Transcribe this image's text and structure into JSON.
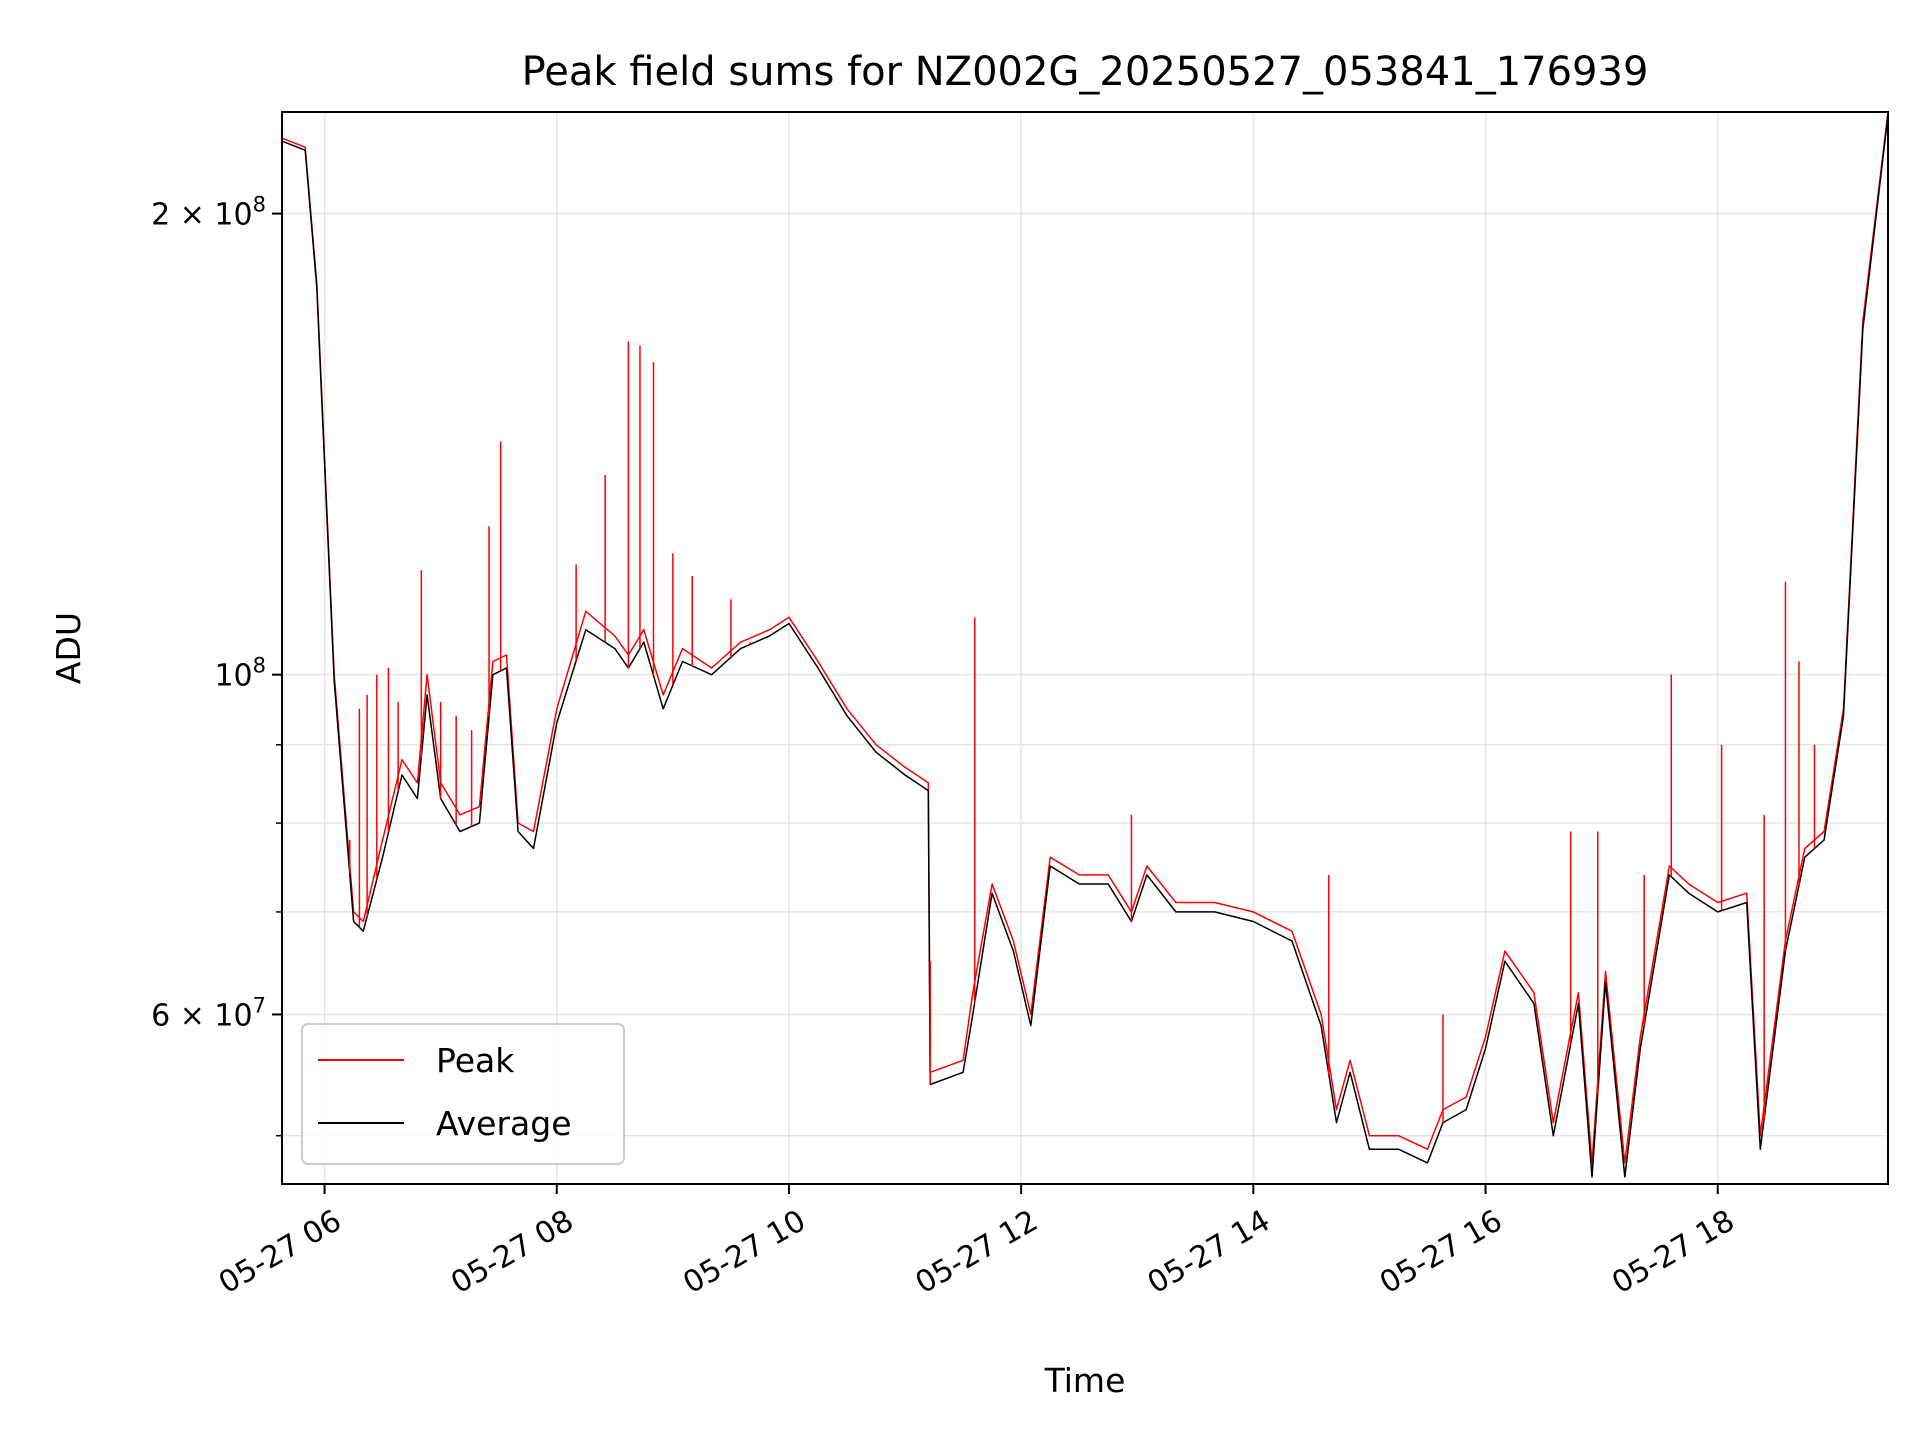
{
  "chart_data": {
    "type": "line",
    "title": "Peak field sums for NZ002G_20250527_053841_176939",
    "xlabel": "Time",
    "ylabel": "ADU",
    "y_scale": "log",
    "xlim": [
      "2025-05-27 05:38",
      "2025-05-27 19:28"
    ],
    "ylim": [
      46500000,
      233000000
    ],
    "grid": true,
    "legend_position": "lower-left",
    "x_ticks": [
      {
        "value": "2025-05-27 06:00",
        "label": "05-27 06"
      },
      {
        "value": "2025-05-27 08:00",
        "label": "05-27 08"
      },
      {
        "value": "2025-05-27 10:00",
        "label": "05-27 10"
      },
      {
        "value": "2025-05-27 12:00",
        "label": "05-27 12"
      },
      {
        "value": "2025-05-27 14:00",
        "label": "05-27 14"
      },
      {
        "value": "2025-05-27 16:00",
        "label": "05-27 16"
      },
      {
        "value": "2025-05-27 18:00",
        "label": "05-27 18"
      }
    ],
    "y_ticks": [
      {
        "value": 200000000,
        "label_base": "2 × 10",
        "label_exp": "8"
      },
      {
        "value": 100000000,
        "label_base": "10",
        "label_exp": "8"
      },
      {
        "value": 60000000,
        "label_base": "6 × 10",
        "label_exp": "7"
      }
    ],
    "y_minor_ticks": [
      50000000,
      70000000,
      80000000,
      90000000
    ],
    "series": [
      {
        "name": "Peak",
        "color": "#ff0000",
        "x": [
          "2025-05-27 05:38",
          "2025-05-27 05:50",
          "2025-05-27 05:56",
          "2025-05-27 06:05",
          "2025-05-27 06:15",
          "2025-05-27 06:20",
          "2025-05-27 06:30",
          "2025-05-27 06:40",
          "2025-05-27 06:48",
          "2025-05-27 06:53",
          "2025-05-27 07:00",
          "2025-05-27 07:10",
          "2025-05-27 07:20",
          "2025-05-27 07:27",
          "2025-05-27 07:34",
          "2025-05-27 07:40",
          "2025-05-27 07:48",
          "2025-05-27 08:00",
          "2025-05-27 08:15",
          "2025-05-27 08:30",
          "2025-05-27 08:37",
          "2025-05-27 08:45",
          "2025-05-27 08:55",
          "2025-05-27 09:05",
          "2025-05-27 09:20",
          "2025-05-27 09:35",
          "2025-05-27 09:50",
          "2025-05-27 10:00",
          "2025-05-27 10:15",
          "2025-05-27 10:30",
          "2025-05-27 10:45",
          "2025-05-27 11:00",
          "2025-05-27 11:12",
          "2025-05-27 11:13",
          "2025-05-27 11:30",
          "2025-05-27 11:35",
          "2025-05-27 11:45",
          "2025-05-27 11:56",
          "2025-05-27 12:05",
          "2025-05-27 12:15",
          "2025-05-27 12:30",
          "2025-05-27 12:45",
          "2025-05-27 12:57",
          "2025-05-27 13:05",
          "2025-05-27 13:20",
          "2025-05-27 13:40",
          "2025-05-27 14:00",
          "2025-05-27 14:20",
          "2025-05-27 14:35",
          "2025-05-27 14:43",
          "2025-05-27 14:50",
          "2025-05-27 15:00",
          "2025-05-27 15:15",
          "2025-05-27 15:30",
          "2025-05-27 15:38",
          "2025-05-27 15:50",
          "2025-05-27 16:00",
          "2025-05-27 16:10",
          "2025-05-27 16:25",
          "2025-05-27 16:35",
          "2025-05-27 16:48",
          "2025-05-27 16:55",
          "2025-05-27 17:02",
          "2025-05-27 17:12",
          "2025-05-27 17:20",
          "2025-05-27 17:35",
          "2025-05-27 17:45",
          "2025-05-27 18:00",
          "2025-05-27 18:15",
          "2025-05-27 18:22",
          "2025-05-27 18:35",
          "2025-05-27 18:45",
          "2025-05-27 18:55",
          "2025-05-27 19:05",
          "2025-05-27 19:15",
          "2025-05-27 19:28"
        ],
        "values": [
          224000000,
          221000000,
          180000000,
          100000000,
          70000000,
          69000000,
          78000000,
          88000000,
          85000000,
          100000000,
          85000000,
          81000000,
          82000000,
          102000000,
          103000000,
          80000000,
          79000000,
          95000000,
          110000000,
          106000000,
          103000000,
          107000000,
          97000000,
          104000000,
          101000000,
          105000000,
          107000000,
          109000000,
          102000000,
          95000000,
          90000000,
          87000000,
          85000000,
          55000000,
          56000000,
          62000000,
          73000000,
          67000000,
          60000000,
          76000000,
          74000000,
          74000000,
          70000000,
          75000000,
          71000000,
          71000000,
          70000000,
          68000000,
          60000000,
          52000000,
          56000000,
          50000000,
          50000000,
          49000000,
          52000000,
          53000000,
          58000000,
          66000000,
          62000000,
          51000000,
          62000000,
          48000000,
          64000000,
          48000000,
          58000000,
          75000000,
          73000000,
          71000000,
          72000000,
          50000000,
          67000000,
          77000000,
          79000000,
          95000000,
          170000000,
          233000000
        ]
      },
      {
        "name": "Average",
        "color": "#000000",
        "x": [
          "2025-05-27 05:38",
          "2025-05-27 05:50",
          "2025-05-27 05:56",
          "2025-05-27 06:05",
          "2025-05-27 06:15",
          "2025-05-27 06:20",
          "2025-05-27 06:30",
          "2025-05-27 06:40",
          "2025-05-27 06:48",
          "2025-05-27 06:53",
          "2025-05-27 07:00",
          "2025-05-27 07:10",
          "2025-05-27 07:20",
          "2025-05-27 07:27",
          "2025-05-27 07:34",
          "2025-05-27 07:40",
          "2025-05-27 07:48",
          "2025-05-27 08:00",
          "2025-05-27 08:15",
          "2025-05-27 08:30",
          "2025-05-27 08:37",
          "2025-05-27 08:45",
          "2025-05-27 08:55",
          "2025-05-27 09:05",
          "2025-05-27 09:20",
          "2025-05-27 09:35",
          "2025-05-27 09:50",
          "2025-05-27 10:00",
          "2025-05-27 10:15",
          "2025-05-27 10:30",
          "2025-05-27 10:45",
          "2025-05-27 11:00",
          "2025-05-27 11:12",
          "2025-05-27 11:13",
          "2025-05-27 11:30",
          "2025-05-27 11:35",
          "2025-05-27 11:45",
          "2025-05-27 11:56",
          "2025-05-27 12:05",
          "2025-05-27 12:15",
          "2025-05-27 12:30",
          "2025-05-27 12:45",
          "2025-05-27 12:57",
          "2025-05-27 13:05",
          "2025-05-27 13:20",
          "2025-05-27 13:40",
          "2025-05-27 14:00",
          "2025-05-27 14:20",
          "2025-05-27 14:35",
          "2025-05-27 14:43",
          "2025-05-27 14:50",
          "2025-05-27 15:00",
          "2025-05-27 15:15",
          "2025-05-27 15:30",
          "2025-05-27 15:38",
          "2025-05-27 15:50",
          "2025-05-27 16:00",
          "2025-05-27 16:10",
          "2025-05-27 16:25",
          "2025-05-27 16:35",
          "2025-05-27 16:48",
          "2025-05-27 16:55",
          "2025-05-27 17:02",
          "2025-05-27 17:12",
          "2025-05-27 17:20",
          "2025-05-27 17:35",
          "2025-05-27 17:45",
          "2025-05-27 18:00",
          "2025-05-27 18:15",
          "2025-05-27 18:22",
          "2025-05-27 18:35",
          "2025-05-27 18:45",
          "2025-05-27 18:55",
          "2025-05-27 19:05",
          "2025-05-27 19:15",
          "2025-05-27 19:28"
        ],
        "values": [
          223000000,
          220000000,
          179000000,
          99000000,
          69000000,
          68000000,
          76000000,
          86000000,
          83000000,
          97000000,
          83000000,
          79000000,
          80000000,
          100000000,
          101000000,
          79000000,
          77000000,
          93000000,
          107000000,
          104000000,
          101000000,
          105000000,
          95000000,
          102000000,
          100000000,
          104000000,
          106000000,
          108000000,
          101000000,
          94000000,
          89000000,
          86000000,
          84000000,
          54000000,
          55000000,
          60000000,
          72000000,
          66000000,
          59000000,
          75000000,
          73000000,
          73000000,
          69000000,
          74000000,
          70000000,
          70000000,
          69000000,
          67000000,
          59000000,
          51000000,
          55000000,
          49000000,
          49000000,
          48000000,
          51000000,
          52000000,
          57000000,
          65000000,
          61000000,
          50000000,
          61000000,
          47000000,
          63000000,
          47000000,
          57000000,
          74000000,
          72000000,
          70000000,
          71000000,
          49000000,
          66000000,
          76000000,
          78000000,
          94000000,
          168000000,
          232000000
        ]
      }
    ],
    "spikes": {
      "color": "#ff0000",
      "x": [
        "2025-05-27 06:13",
        "2025-05-27 06:18",
        "2025-05-27 06:22",
        "2025-05-27 06:27",
        "2025-05-27 06:33",
        "2025-05-27 06:38",
        "2025-05-27 06:50",
        "2025-05-27 07:00",
        "2025-05-27 07:08",
        "2025-05-27 07:16",
        "2025-05-27 07:25",
        "2025-05-27 07:31",
        "2025-05-27 08:10",
        "2025-05-27 08:25",
        "2025-05-27 08:37",
        "2025-05-27 08:43",
        "2025-05-27 08:50",
        "2025-05-27 09:00",
        "2025-05-27 09:10",
        "2025-05-27 09:30",
        "2025-05-27 09:40",
        "2025-05-27 11:13",
        "2025-05-27 11:36",
        "2025-05-27 12:57",
        "2025-05-27 14:39",
        "2025-05-27 15:38",
        "2025-05-27 16:44",
        "2025-05-27 16:58",
        "2025-05-27 17:22",
        "2025-05-27 17:36",
        "2025-05-27 18:02",
        "2025-05-27 18:24",
        "2025-05-27 18:35",
        "2025-05-27 18:42",
        "2025-05-27 18:50"
      ],
      "values": [
        78000000,
        95000000,
        97000000,
        100000000,
        101000000,
        96000000,
        117000000,
        96000000,
        94000000,
        92000000,
        125000000,
        142000000,
        118000000,
        135000000,
        165000000,
        164000000,
        160000000,
        120000000,
        116000000,
        112000000,
        105000000,
        65000000,
        109000000,
        81000000,
        74000000,
        60000000,
        79000000,
        79000000,
        74000000,
        100000000,
        90000000,
        81000000,
        115000000,
        102000000,
        90000000
      ]
    }
  },
  "legend": {
    "items": [
      {
        "label": "Peak",
        "color": "#ff0000"
      },
      {
        "label": "Average",
        "color": "#000000"
      }
    ]
  }
}
